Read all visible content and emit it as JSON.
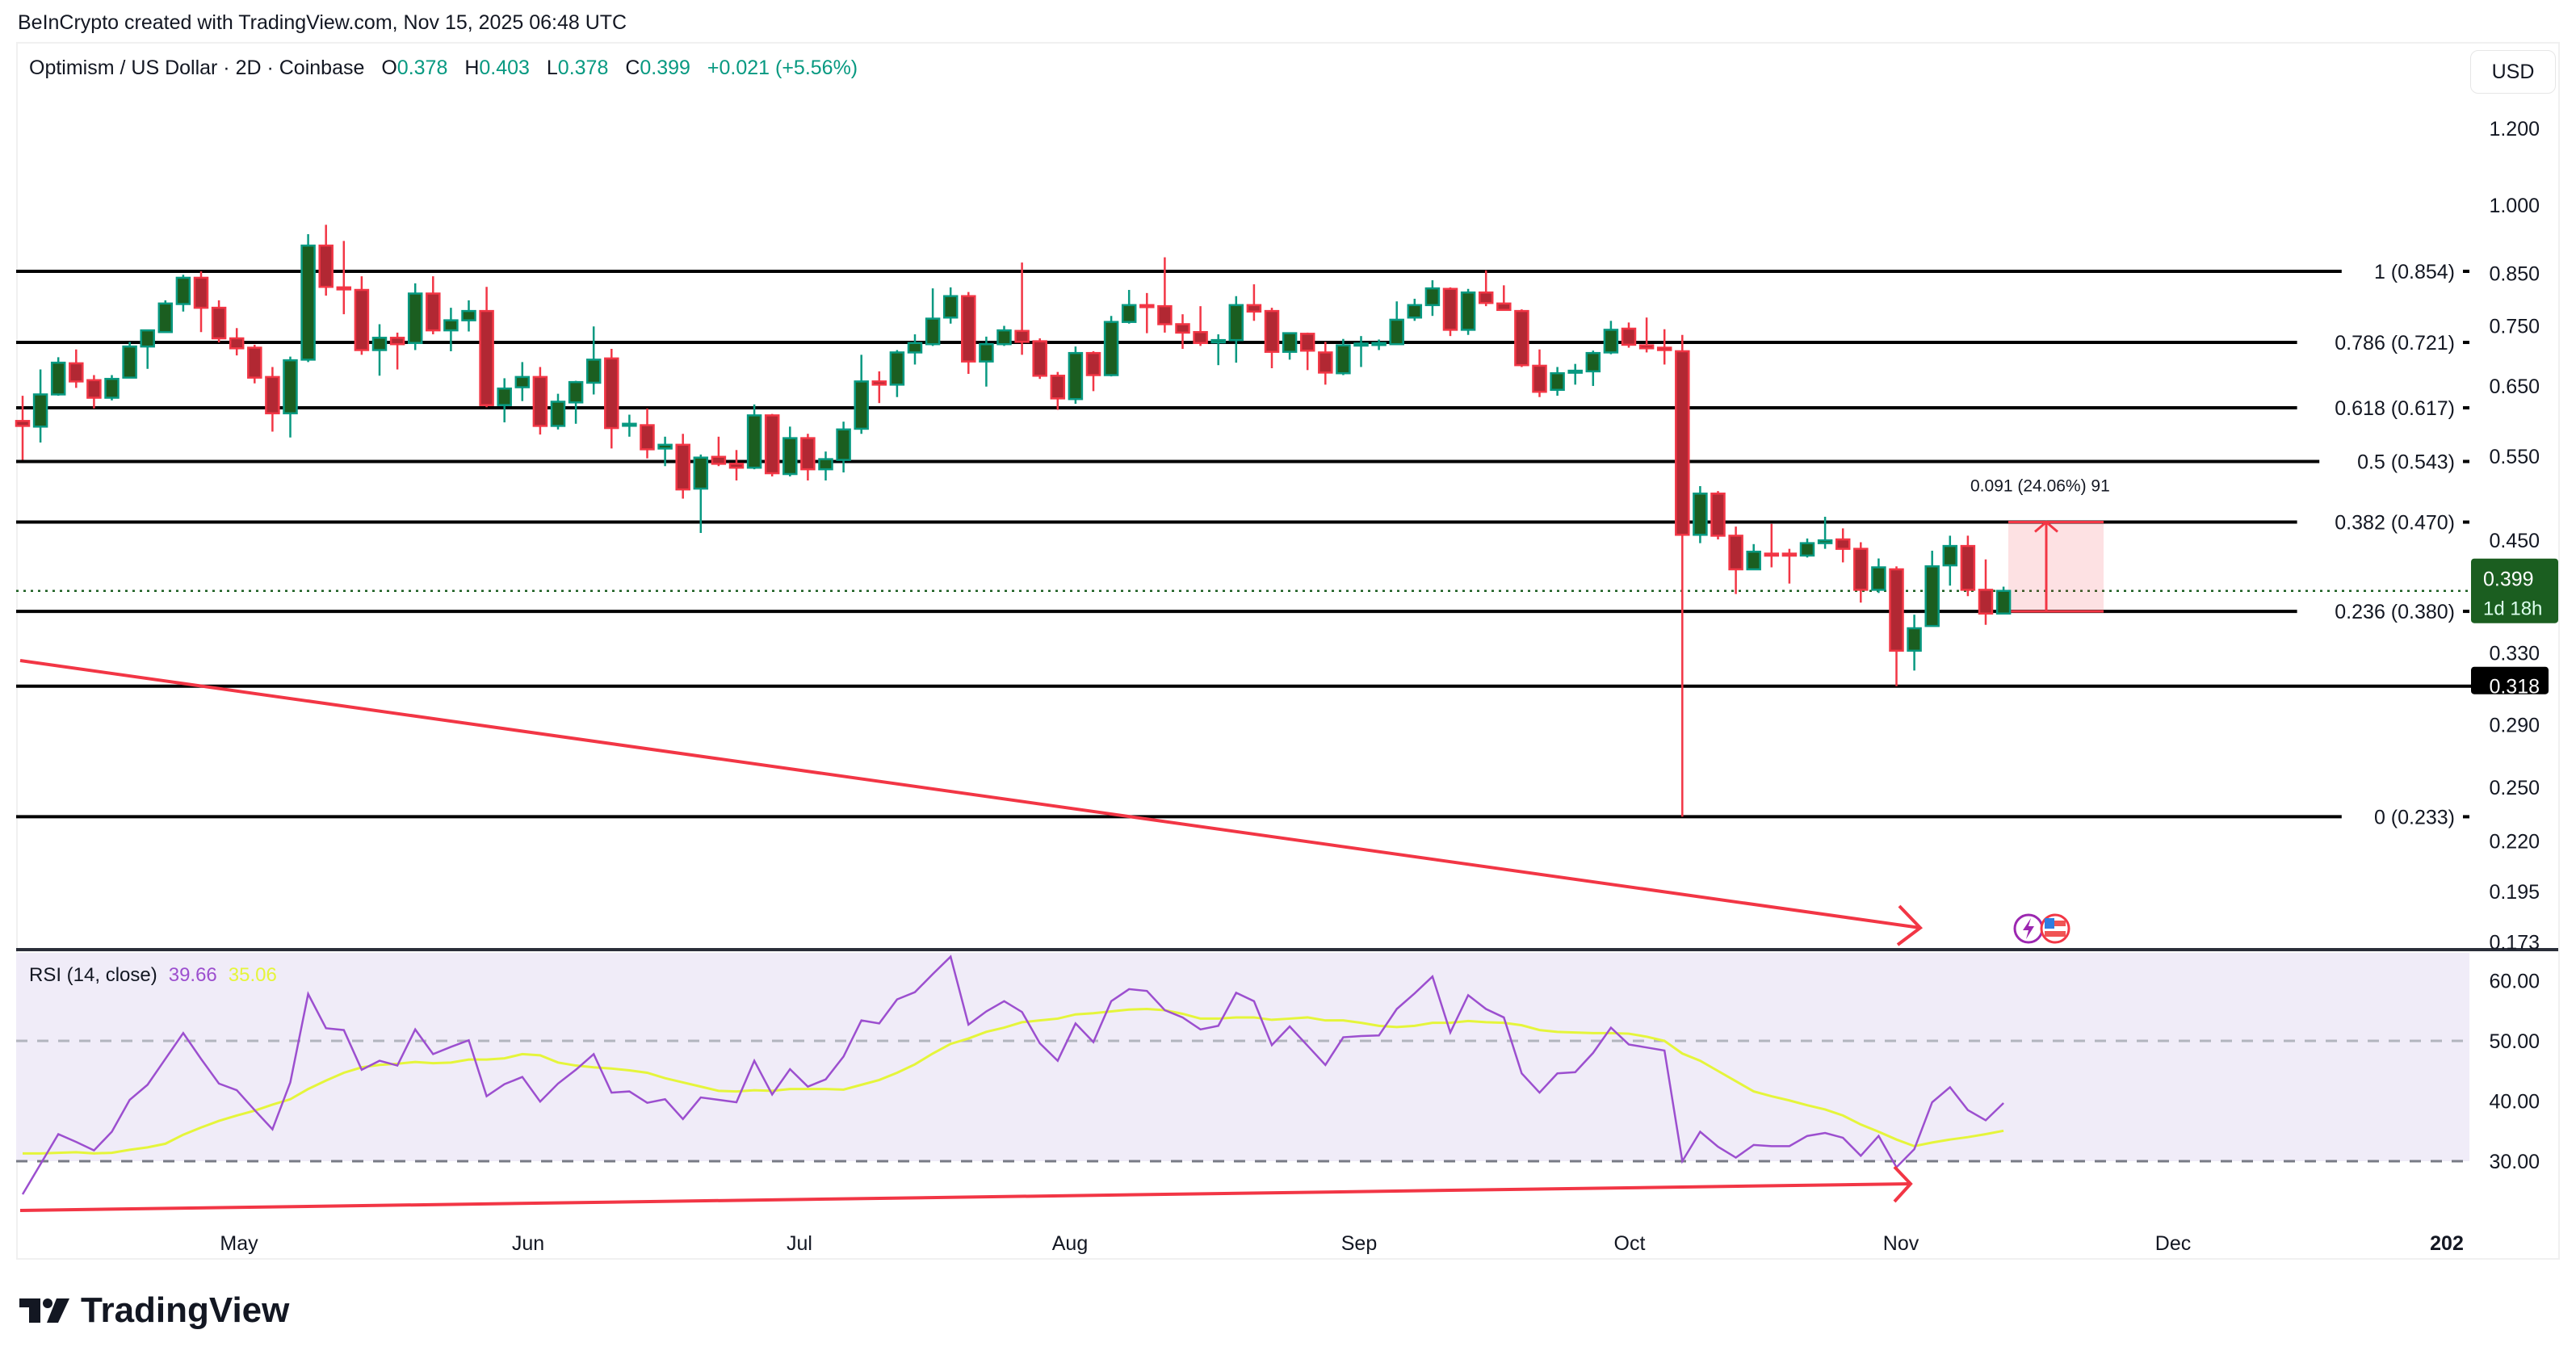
{
  "credit": "BeInCrypto created with TradingView.com, Nov 15, 2025 06:48 UTC",
  "legend": {
    "symbol": "Optimism / US Dollar · 2D · Coinbase",
    "o_label": "O",
    "o": "0.378",
    "h_label": "H",
    "h": "0.403",
    "l_label": "L",
    "l": "0.378",
    "c_label": "C",
    "c": "0.399",
    "change": "+0.021 (+5.56%)"
  },
  "currency_button": "USD",
  "rsi_legend": {
    "label": "RSI (14, close)",
    "rsi": "39.66",
    "ma": "35.06"
  },
  "logo": "TradingView",
  "colors": {
    "up_body": "#1b5e20",
    "up_border": "#089981",
    "down_body": "#b22833",
    "down_border": "#f23645",
    "rsi": "#9c4fcf",
    "rsi_ma": "#e5f53b",
    "rsi_band": "#f0ecf8",
    "drawing": "#f23645",
    "last_price": "#1b5e20"
  },
  "price_badge": {
    "price": "0.399",
    "countdown": "1d 18h"
  },
  "level_badge": "0.318",
  "measure": {
    "label": "0.091 (24.06%) 91",
    "from": 0.38,
    "to": 0.47
  },
  "icons": [
    "lightning-event-icon",
    "us-flag-event-icon"
  ],
  "chart_data": [
    {
      "type": "candlestick",
      "title": "Optimism / US Dollar · 2D · Coinbase",
      "scale": "log",
      "ylim": [
        0.173,
        1.2
      ],
      "y_ticks": [
        "1.200",
        "1.000",
        "0.850",
        "0.750",
        "0.650",
        "0.550",
        "0.450",
        "0.330",
        "0.290",
        "0.250",
        "0.220",
        "0.195",
        "0.173"
      ],
      "x_ticks": [
        "May",
        "Jun",
        "Jul",
        "Aug",
        "Sep",
        "Oct",
        "Nov",
        "Dec",
        "202"
      ],
      "fib_levels": [
        {
          "label": "1 (0.854)",
          "price": 0.854
        },
        {
          "label": "0.786 (0.721)",
          "price": 0.721
        },
        {
          "label": "0.618 (0.617)",
          "price": 0.617
        },
        {
          "label": "0.5 (0.543)",
          "price": 0.543
        },
        {
          "label": "0.382 (0.470)",
          "price": 0.47
        },
        {
          "label": "0.236 (0.380)",
          "price": 0.38
        },
        {
          "label": "0 (0.233)",
          "price": 0.233
        }
      ],
      "support_line": 0.318,
      "last_price": 0.399,
      "ohlc": [
        [
          0.598,
          0.635,
          0.545,
          0.591
        ],
        [
          0.59,
          0.676,
          0.568,
          0.637
        ],
        [
          0.637,
          0.696,
          0.635,
          0.687
        ],
        [
          0.686,
          0.709,
          0.647,
          0.657
        ],
        [
          0.659,
          0.667,
          0.616,
          0.632
        ],
        [
          0.632,
          0.667,
          0.628,
          0.661
        ],
        [
          0.663,
          0.722,
          0.663,
          0.714
        ],
        [
          0.714,
          0.742,
          0.677,
          0.742
        ],
        [
          0.739,
          0.797,
          0.739,
          0.791
        ],
        [
          0.79,
          0.847,
          0.776,
          0.841
        ],
        [
          0.841,
          0.854,
          0.739,
          0.783
        ],
        [
          0.783,
          0.797,
          0.721,
          0.728
        ],
        [
          0.728,
          0.746,
          0.699,
          0.711
        ],
        [
          0.712,
          0.717,
          0.654,
          0.663
        ],
        [
          0.664,
          0.68,
          0.583,
          0.609
        ],
        [
          0.609,
          0.697,
          0.575,
          0.691
        ],
        [
          0.692,
          0.933,
          0.688,
          0.908
        ],
        [
          0.908,
          0.954,
          0.806,
          0.823
        ],
        [
          0.822,
          0.918,
          0.771,
          0.818
        ],
        [
          0.817,
          0.844,
          0.7,
          0.708
        ],
        [
          0.708,
          0.753,
          0.666,
          0.729
        ],
        [
          0.729,
          0.738,
          0.676,
          0.718
        ],
        [
          0.72,
          0.83,
          0.708,
          0.81
        ],
        [
          0.81,
          0.844,
          0.735,
          0.742
        ],
        [
          0.742,
          0.783,
          0.706,
          0.76
        ],
        [
          0.76,
          0.797,
          0.74,
          0.777
        ],
        [
          0.777,
          0.823,
          0.618,
          0.621
        ],
        [
          0.621,
          0.662,
          0.596,
          0.646
        ],
        [
          0.648,
          0.688,
          0.627,
          0.664
        ],
        [
          0.664,
          0.68,
          0.579,
          0.591
        ],
        [
          0.591,
          0.638,
          0.586,
          0.626
        ],
        [
          0.625,
          0.658,
          0.594,
          0.656
        ],
        [
          0.655,
          0.749,
          0.637,
          0.692
        ],
        [
          0.694,
          0.71,
          0.56,
          0.588
        ],
        [
          0.593,
          0.607,
          0.576,
          0.594
        ],
        [
          0.592,
          0.616,
          0.547,
          0.559
        ],
        [
          0.56,
          0.576,
          0.537,
          0.565
        ],
        [
          0.565,
          0.58,
          0.497,
          0.508
        ],
        [
          0.509,
          0.552,
          0.458,
          0.548
        ],
        [
          0.549,
          0.576,
          0.537,
          0.54
        ],
        [
          0.54,
          0.558,
          0.519,
          0.535
        ],
        [
          0.535,
          0.622,
          0.533,
          0.606
        ],
        [
          0.606,
          0.608,
          0.524,
          0.528
        ],
        [
          0.527,
          0.59,
          0.524,
          0.574
        ],
        [
          0.574,
          0.58,
          0.519,
          0.533
        ],
        [
          0.533,
          0.556,
          0.519,
          0.546
        ],
        [
          0.545,
          0.597,
          0.529,
          0.586
        ],
        [
          0.587,
          0.7,
          0.58,
          0.657
        ],
        [
          0.657,
          0.673,
          0.624,
          0.652
        ],
        [
          0.652,
          0.708,
          0.633,
          0.704
        ],
        [
          0.704,
          0.735,
          0.684,
          0.72
        ],
        [
          0.718,
          0.82,
          0.715,
          0.763
        ],
        [
          0.765,
          0.822,
          0.754,
          0.805
        ],
        [
          0.805,
          0.813,
          0.669,
          0.689
        ],
        [
          0.689,
          0.731,
          0.649,
          0.718
        ],
        [
          0.718,
          0.75,
          0.715,
          0.742
        ],
        [
          0.741,
          0.872,
          0.7,
          0.722
        ],
        [
          0.723,
          0.728,
          0.661,
          0.666
        ],
        [
          0.666,
          0.672,
          0.614,
          0.631
        ],
        [
          0.63,
          0.714,
          0.623,
          0.703
        ],
        [
          0.703,
          0.706,
          0.642,
          0.667
        ],
        [
          0.667,
          0.768,
          0.665,
          0.757
        ],
        [
          0.757,
          0.817,
          0.754,
          0.788
        ],
        [
          0.788,
          0.811,
          0.737,
          0.787
        ],
        [
          0.786,
          0.883,
          0.738,
          0.753
        ],
        [
          0.753,
          0.771,
          0.71,
          0.738
        ],
        [
          0.739,
          0.786,
          0.715,
          0.72
        ],
        [
          0.721,
          0.735,
          0.683,
          0.725
        ],
        [
          0.725,
          0.805,
          0.687,
          0.788
        ],
        [
          0.788,
          0.828,
          0.759,
          0.776
        ],
        [
          0.777,
          0.783,
          0.678,
          0.705
        ],
        [
          0.705,
          0.737,
          0.692,
          0.737
        ],
        [
          0.736,
          0.738,
          0.675,
          0.707
        ],
        [
          0.704,
          0.722,
          0.652,
          0.671
        ],
        [
          0.67,
          0.727,
          0.667,
          0.716
        ],
        [
          0.718,
          0.732,
          0.68,
          0.719
        ],
        [
          0.719,
          0.726,
          0.708,
          0.72
        ],
        [
          0.718,
          0.795,
          0.718,
          0.761
        ],
        [
          0.765,
          0.8,
          0.759,
          0.788
        ],
        [
          0.788,
          0.836,
          0.768,
          0.82
        ],
        [
          0.819,
          0.822,
          0.732,
          0.743
        ],
        [
          0.743,
          0.819,
          0.734,
          0.812
        ],
        [
          0.812,
          0.856,
          0.786,
          0.792
        ],
        [
          0.791,
          0.826,
          0.779,
          0.779
        ],
        [
          0.777,
          0.78,
          0.68,
          0.683
        ],
        [
          0.682,
          0.709,
          0.633,
          0.641
        ],
        [
          0.644,
          0.68,
          0.635,
          0.67
        ],
        [
          0.673,
          0.685,
          0.652,
          0.674
        ],
        [
          0.673,
          0.707,
          0.65,
          0.703
        ],
        [
          0.704,
          0.759,
          0.701,
          0.743
        ],
        [
          0.745,
          0.756,
          0.712,
          0.717
        ],
        [
          0.716,
          0.765,
          0.704,
          0.711
        ],
        [
          0.712,
          0.744,
          0.684,
          0.708
        ],
        [
          0.706,
          0.734,
          0.233,
          0.456
        ],
        [
          0.456,
          0.512,
          0.447,
          0.503
        ],
        [
          0.503,
          0.506,
          0.451,
          0.455
        ],
        [
          0.455,
          0.465,
          0.396,
          0.42
        ],
        [
          0.42,
          0.446,
          0.42,
          0.438
        ],
        [
          0.436,
          0.468,
          0.422,
          0.434
        ],
        [
          0.436,
          0.441,
          0.406,
          0.435
        ],
        [
          0.434,
          0.452,
          0.432,
          0.447
        ],
        [
          0.447,
          0.476,
          0.441,
          0.45
        ],
        [
          0.451,
          0.463,
          0.427,
          0.441
        ],
        [
          0.441,
          0.448,
          0.388,
          0.4
        ],
        [
          0.4,
          0.431,
          0.397,
          0.422
        ],
        [
          0.42,
          0.423,
          0.318,
          0.346
        ],
        [
          0.346,
          0.377,
          0.33,
          0.365
        ],
        [
          0.367,
          0.439,
          0.367,
          0.423
        ],
        [
          0.424,
          0.455,
          0.404,
          0.444
        ],
        [
          0.444,
          0.455,
          0.394,
          0.4
        ],
        [
          0.4,
          0.43,
          0.368,
          0.378
        ],
        [
          0.378,
          0.403,
          0.378,
          0.399
        ]
      ]
    },
    {
      "type": "line",
      "title": "RSI (14, close)",
      "ylim": [
        23,
        67
      ],
      "y_ticks": [
        "60.00",
        "50.00",
        "40.00",
        "30.00"
      ],
      "bands": [
        50,
        30
      ],
      "series": [
        {
          "name": "RSI",
          "values": [
            24.5,
            29.5,
            34.5,
            33.2,
            31.8,
            34.9,
            40.2,
            42.7,
            47.0,
            51.3,
            47.0,
            42.9,
            41.8,
            38.5,
            35.3,
            43.1,
            57.8,
            52.1,
            51.8,
            45.2,
            46.7,
            45.9,
            51.9,
            47.8,
            49.0,
            50.1,
            40.8,
            42.8,
            44.0,
            39.9,
            42.9,
            45.2,
            47.8,
            41.4,
            41.6,
            39.7,
            40.3,
            37.0,
            40.6,
            40.2,
            39.8,
            46.7,
            41.1,
            45.3,
            42.4,
            43.6,
            47.4,
            53.4,
            52.9,
            56.9,
            58.1,
            61.1,
            64.0,
            52.7,
            54.9,
            56.6,
            54.8,
            49.6,
            46.7,
            52.9,
            49.8,
            56.6,
            58.6,
            58.3,
            55.1,
            53.9,
            51.9,
            52.5,
            58.0,
            56.6,
            49.3,
            52.4,
            49.2,
            46.0,
            50.6,
            50.8,
            50.9,
            55.3,
            57.9,
            60.7,
            51.4,
            57.6,
            55.3,
            53.9,
            44.6,
            41.4,
            44.6,
            44.8,
            48.0,
            52.2,
            49.4,
            48.9,
            48.4,
            30.0,
            34.9,
            32.4,
            30.6,
            32.7,
            32.5,
            32.5,
            34.2,
            34.7,
            33.9,
            30.9,
            34.2,
            29.0,
            32.0,
            39.8,
            42.3,
            38.5,
            36.8,
            39.66
          ]
        },
        {
          "name": "RSI-based MA",
          "values": [
            31.3,
            31.3,
            31.4,
            31.5,
            31.3,
            31.4,
            31.9,
            32.3,
            32.9,
            34.4,
            35.6,
            36.7,
            37.6,
            38.4,
            39.4,
            40.3,
            42.0,
            43.4,
            44.7,
            45.6,
            46.0,
            46.2,
            46.5,
            46.3,
            46.4,
            46.9,
            46.9,
            47.1,
            47.8,
            47.6,
            46.4,
            45.9,
            45.6,
            45.4,
            45.1,
            44.7,
            43.8,
            43.1,
            42.4,
            41.7,
            41.6,
            41.8,
            41.7,
            42.0,
            42.0,
            42.0,
            41.9,
            42.7,
            43.5,
            44.7,
            46.1,
            47.9,
            49.5,
            50.4,
            51.5,
            52.2,
            53.1,
            53.4,
            53.7,
            54.4,
            54.6,
            54.9,
            55.2,
            55.3,
            55.1,
            54.5,
            53.7,
            53.7,
            53.9,
            53.9,
            53.5,
            53.7,
            53.9,
            53.4,
            53.4,
            53.0,
            52.5,
            52.3,
            52.5,
            53.0,
            53.0,
            53.3,
            53.1,
            53.0,
            52.6,
            51.8,
            51.5,
            51.4,
            51.3,
            51.3,
            51.2,
            50.7,
            50.0,
            47.9,
            46.7,
            45.0,
            43.3,
            41.6,
            40.8,
            40.1,
            39.3,
            38.6,
            37.6,
            36.1,
            34.9,
            33.6,
            32.5,
            33.1,
            33.6,
            34.0,
            34.5,
            35.06
          ]
        }
      ]
    }
  ]
}
